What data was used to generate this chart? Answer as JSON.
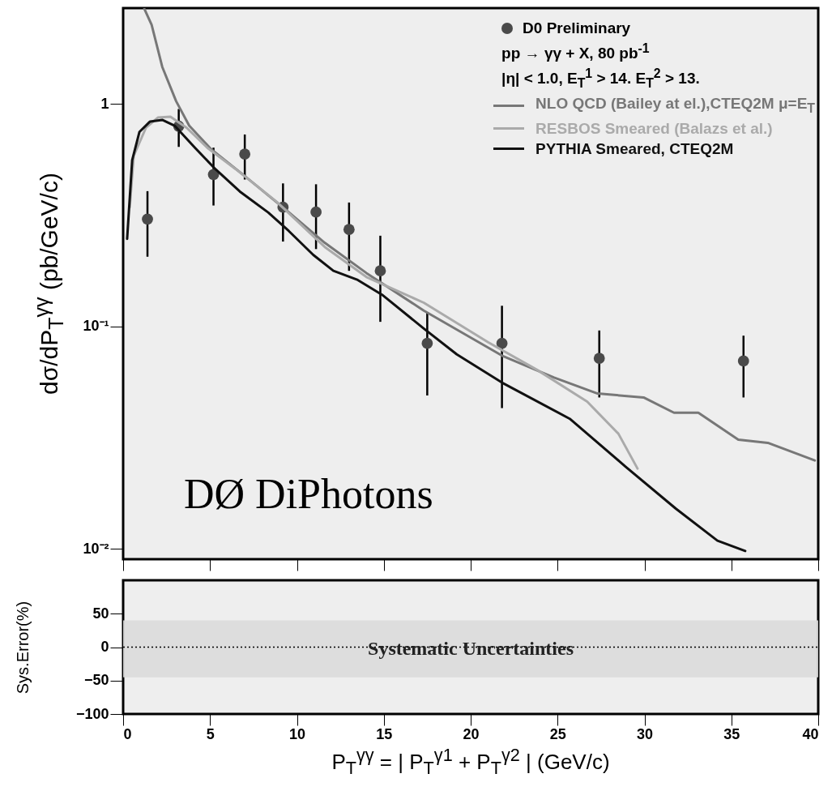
{
  "chart_data": [
    {
      "type": "scatter",
      "ylabel": "dσ/dP$_{T}$$^{γγ}$ (pb/GeV/c)",
      "xlim": [
        0,
        40
      ],
      "ylim": [
        0.009,
        2.7
      ],
      "log": "y",
      "xticks": [
        0,
        5,
        10,
        15,
        20,
        25,
        30,
        35,
        40
      ],
      "yticks": [
        {
          "value": 0.01,
          "label": "10⁻²"
        },
        {
          "value": 0.1,
          "label": "10⁻¹"
        },
        1
      ],
      "tick_labels": "y",
      "grid": false,
      "legend": "top right",
      "annotations": [
        "pp → γγ + X,  80 pb$^{-1}$",
        "|η| < 1.0,  E$_{T}$$^{1}$ > 14. E$_{T}$$^{2}$ > 13.",
        "DØ DiPhotons"
      ],
      "series": [
        {
          "name": "D0 Preliminary",
          "marker": "circle",
          "color": "#4a4a4a",
          "x": [
            1.4,
            3.2,
            5.2,
            7,
            9.2,
            11.1,
            13,
            14.8,
            17.5,
            21.8,
            27.4,
            35.7
          ],
          "values": [
            0.304,
            0.795,
            0.482,
            0.596,
            0.344,
            0.327,
            0.273,
            0.178,
            0.084,
            0.084,
            0.072,
            0.07
          ],
          "errors": [
            [
              0.206,
              0.406
            ],
            [
              0.642,
              0.95
            ],
            [
              0.35,
              0.637
            ],
            [
              0.458,
              0.73
            ],
            [
              0.241,
              0.44
            ],
            [
              0.223,
              0.436
            ],
            [
              0.178,
              0.361
            ],
            [
              0.105,
              0.256
            ],
            [
              0.049,
              0.116
            ],
            [
              0.043,
              0.124
            ],
            [
              0.048,
              0.096
            ],
            [
              0.048,
              0.091
            ]
          ]
        },
        {
          "name": "NLO QCD (Bailey at el.),CTEQ2M μ=E$_{T}$",
          "type": "line",
          "color": "#777777",
          "x": [
            1.22,
            1.64,
            2.25,
            3.05,
            3.8,
            5.07,
            6.95,
            9.3,
            11.6,
            14,
            17.3,
            21.8,
            24.8,
            27.3,
            29.95,
            31.7,
            33.1,
            35.4,
            37.1,
            39.8
          ],
          "values": [
            2.68,
            2.27,
            1.47,
            1.03,
            0.8,
            0.626,
            0.478,
            0.338,
            0.238,
            0.174,
            0.118,
            0.074,
            0.059,
            0.05,
            0.048,
            0.041,
            0.041,
            0.031,
            0.03,
            0.025
          ]
        },
        {
          "name": "RESBOS Smeared (Balazs et al.)",
          "type": "line",
          "color": "#aaaaaa",
          "x": [
            0.38,
            0.61,
            1.31,
            2,
            2.72,
            3.66,
            4.84,
            6.48,
            8.83,
            11.6,
            14,
            17.3,
            21,
            23.8,
            26.7,
            28.5,
            29.6
          ],
          "values": [
            0.344,
            0.586,
            0.782,
            0.87,
            0.877,
            0.782,
            0.637,
            0.51,
            0.364,
            0.228,
            0.167,
            0.128,
            0.085,
            0.064,
            0.046,
            0.033,
            0.023
          ]
        },
        {
          "name": "PYTHIA Smeared, CTEQ2M",
          "type": "line",
          "color": "#111111",
          "x": [
            0.23,
            0.52,
            0.94,
            1.55,
            2.25,
            2.96,
            4.13,
            5.31,
            6.71,
            8.36,
            9.53,
            10.94,
            12.1,
            13.5,
            14.9,
            17.3,
            19.2,
            21.8,
            25.7,
            28.9,
            31.8,
            34.2,
            35.8
          ],
          "values": [
            0.248,
            0.56,
            0.75,
            0.835,
            0.849,
            0.8,
            0.637,
            0.51,
            0.405,
            0.325,
            0.269,
            0.21,
            0.178,
            0.162,
            0.139,
            0.098,
            0.075,
            0.056,
            0.0385,
            0.0235,
            0.0152,
            0.0109,
            0.0098
          ]
        }
      ]
    },
    {
      "type": "line",
      "ylabel": "Sys.Error(%)",
      "xlabel": "P$_{T}$$^{γγ}$ = | P$_{T}$$^{γ1}$ + P$_{T}$$^{γ2}$ | (GeV/c)",
      "xlim": [
        0,
        40
      ],
      "ylim": [
        -100,
        100
      ],
      "xticks": [
        0,
        5,
        10,
        15,
        20,
        25,
        30,
        35,
        40
      ],
      "yticks": [
        -100,
        -50,
        0,
        50
      ],
      "grid": false,
      "ref_lines": [
        {
          "axis": "y",
          "value": 0,
          "line_style": "dotted",
          "color": "#000000"
        }
      ],
      "bands": [
        {
          "axis": "y",
          "from": -45,
          "to": 40,
          "label": "Systematic Uncertainties",
          "color": "#dadada"
        }
      ]
    }
  ]
}
